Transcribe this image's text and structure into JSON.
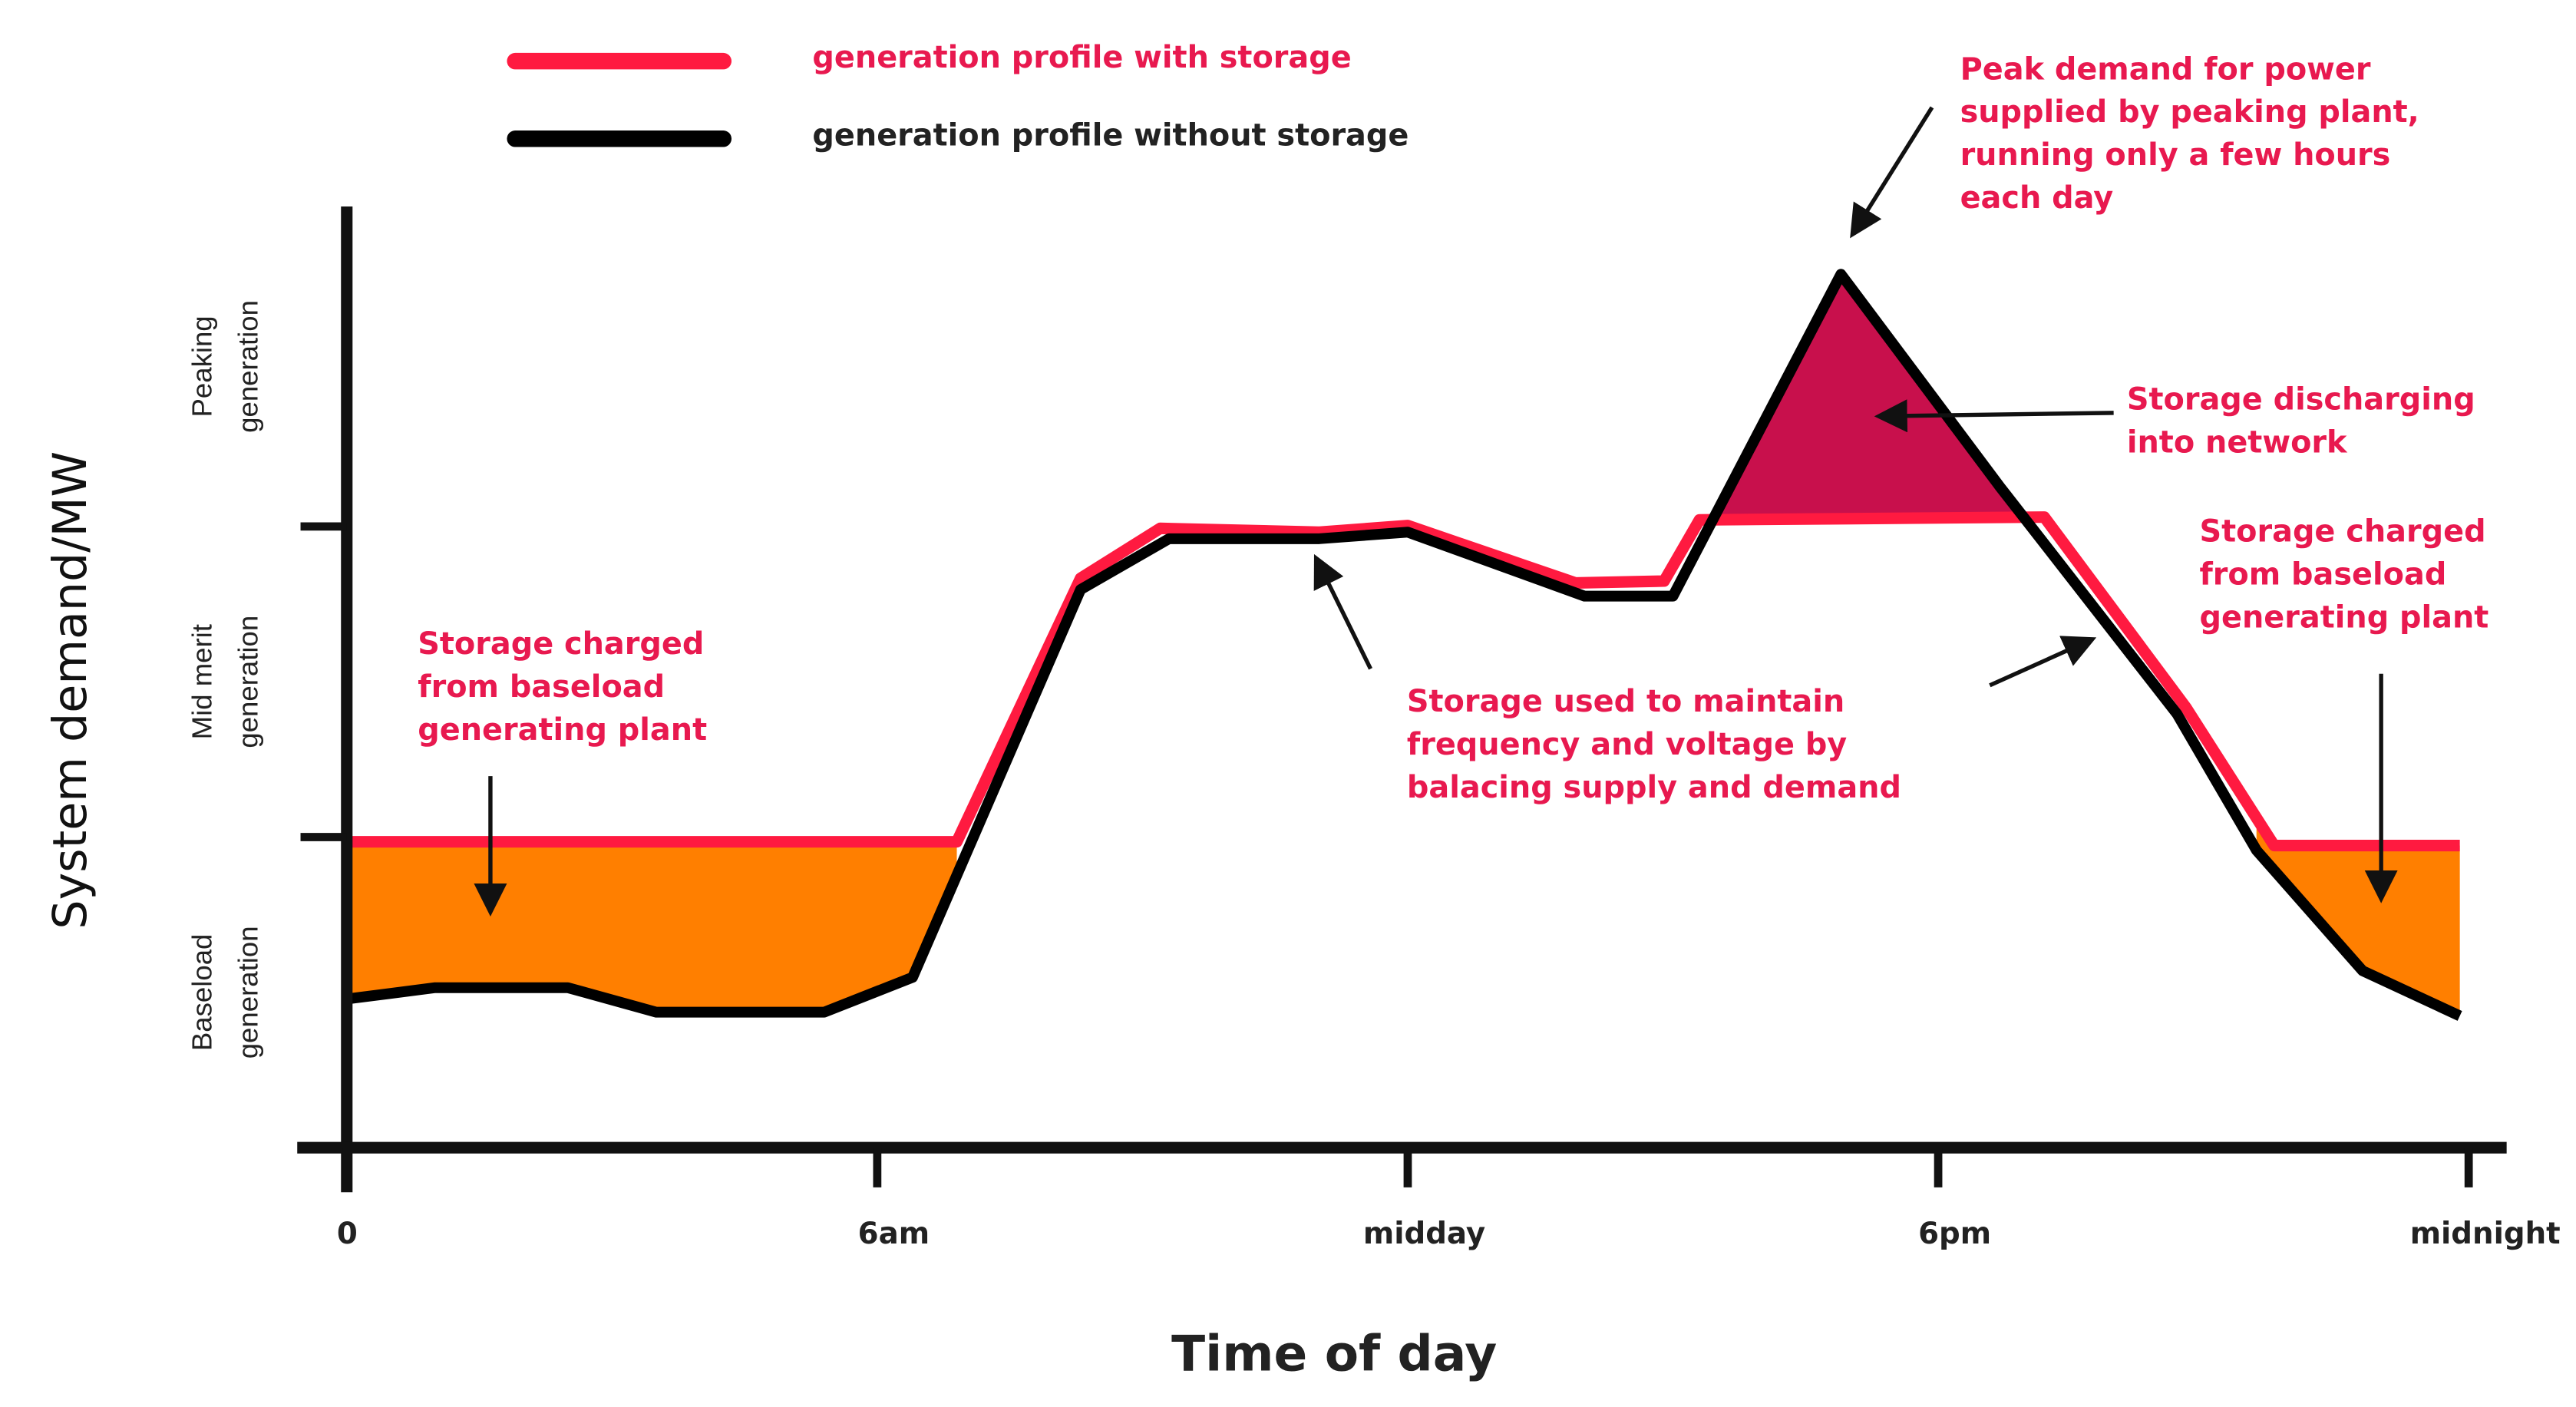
{
  "chart_data": {
    "type": "line",
    "x_label": "Time of day",
    "y_label": "System demand/MW",
    "xlim": [
      0,
      24
    ],
    "ylim": [
      0,
      100
    ],
    "xticks": [
      0,
      {
        "value": 6,
        "label": "6am"
      },
      {
        "value": 12,
        "label": "midday"
      },
      {
        "value": 18,
        "label": "6pm"
      },
      {
        "value": 24,
        "label": "midnight"
      }
    ],
    "y_bands": [
      {
        "lines": [
          "Peaking",
          "generation"
        ],
        "from": 66,
        "to": 100
      },
      {
        "lines": [
          "Mid merit",
          "generation"
        ],
        "from": 33,
        "to": 66
      },
      {
        "lines": [
          "Baseload",
          "generation"
        ],
        "from": 0,
        "to": 33
      }
    ],
    "series": [
      {
        "name": "generation profile with storage",
        "color": "#ff1a40",
        "x": [
          0,
          6.9,
          8.3,
          9.2,
          11,
          12,
          13.9,
          14.9,
          15.3,
          19.2,
          20.8,
          21.8,
          23.9
        ],
        "values": [
          32.5,
          32.5,
          60.5,
          65.8,
          65.4,
          66.1,
          60.0,
          60.2,
          66.7,
          67.0,
          46.8,
          32.1,
          32.1
        ]
      },
      {
        "name": "generation profile without storage",
        "color": "#000000",
        "x": [
          0,
          1,
          2.5,
          3.5,
          5.4,
          6.4,
          8.3,
          9.3,
          11,
          12,
          14,
          15,
          16.9,
          18.7,
          20.7,
          21.6,
          22.8,
          23.9
        ],
        "values": [
          15.8,
          17.0,
          17.0,
          14.4,
          14.4,
          18.1,
          59.3,
          64.7,
          64.7,
          65.4,
          58.6,
          58.6,
          92.8,
          70.2,
          46.1,
          31.6,
          18.8,
          14.0
        ]
      }
    ],
    "shaded_regions": [
      {
        "color": "#ff7f00",
        "from": 0,
        "to": 6.9
      },
      {
        "color": "#c8104c",
        "from": 15.47,
        "to": 18.97
      },
      {
        "color": "#ff7f00",
        "from": 21.6,
        "to": 23.9
      }
    ],
    "annotation_color": "#e8194f",
    "annotations": [
      {
        "lines": [
          "Peak demand for power",
          "supplied by peaking plant,",
          "running only a few hours",
          "each day"
        ]
      },
      {
        "lines": [
          "Storage discharging",
          "into network"
        ]
      },
      {
        "lines": [
          "Storage charged",
          "from baseload",
          "generating plant"
        ]
      },
      {
        "lines": [
          "Storage used to maintain",
          "frequency and voltage by",
          "balacing supply and demand"
        ]
      },
      {
        "lines": [
          "Storage charged",
          "from baseload",
          "generating plant"
        ]
      }
    ]
  }
}
